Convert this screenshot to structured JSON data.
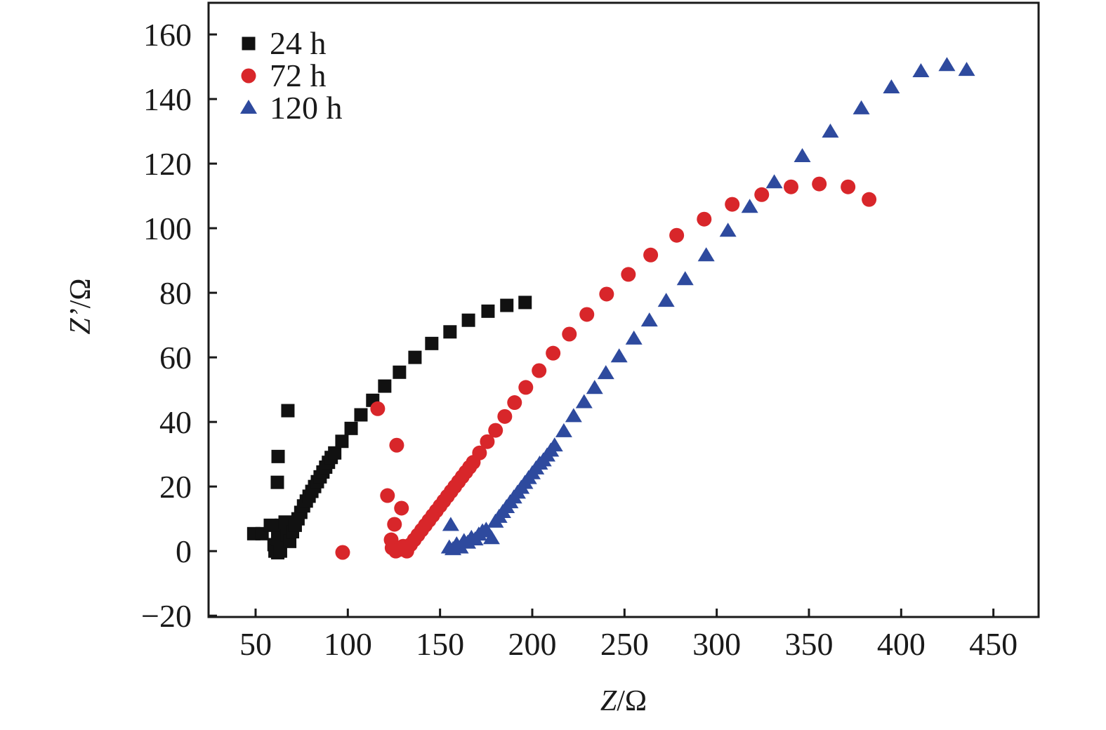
{
  "chart_data": {
    "type": "scatter",
    "title": "",
    "xlabel": "Z/Ω",
    "ylabel": "Z’/Ω",
    "xlim": [
      24.5,
      474.5
    ],
    "ylim": [
      -20.4,
      169.8
    ],
    "xticks": [
      50,
      100,
      150,
      200,
      250,
      300,
      350,
      400,
      450
    ],
    "yticks": [
      -20,
      0,
      20,
      40,
      60,
      80,
      100,
      120,
      140,
      160
    ],
    "xtick_labels": [
      "50",
      "100",
      "150",
      "200",
      "250",
      "300",
      "350",
      "400",
      "450"
    ],
    "ytick_labels": [
      "−20",
      "0",
      "20",
      "40",
      "60",
      "80",
      "100",
      "120",
      "140",
      "160"
    ],
    "grid": false,
    "legend_position": "top-left",
    "series": [
      {
        "name": "24 h",
        "marker": "square",
        "color": "#111111",
        "x": [
          49.0,
          53.5,
          58.0,
          60.0,
          60.5,
          62.0,
          63.5,
          62.0,
          64.0,
          66.0,
          67.0,
          68.5,
          70.0,
          71.5,
          73.0,
          74.5,
          76.0,
          77.5,
          79.0,
          80.5,
          82.0,
          83.5,
          85.0,
          86.5,
          88.0,
          89.5,
          91.0,
          92.9,
          96.8,
          101.8,
          107.1,
          113.5,
          120.0,
          128.0,
          136.4,
          145.5,
          155.4,
          165.4,
          176.0,
          186.2,
          196.1,
          61.8,
          62.2,
          67.5
        ],
        "y": [
          5.4,
          5.4,
          8.0,
          2.0,
          0.0,
          -0.5,
          0.0,
          4.0,
          8.0,
          9.0,
          5.0,
          3.0,
          6.0,
          8.0,
          10.0,
          12.0,
          14.0,
          15.5,
          17.0,
          18.5,
          20.0,
          21.5,
          23.0,
          24.5,
          26.0,
          27.5,
          29.0,
          30.4,
          34.0,
          38.0,
          42.2,
          46.7,
          51.1,
          55.4,
          60.0,
          64.3,
          67.9,
          71.5,
          74.3,
          76.1,
          77.0,
          21.3,
          29.3,
          43.5
        ]
      },
      {
        "name": "72 h",
        "marker": "circle",
        "color": "#D8262A",
        "x": [
          97.2,
          116.2,
          126.5,
          121.5,
          129.1,
          125.3,
          123.5,
          124.0,
          126.0,
          128.0,
          130.0,
          132.0,
          134.0,
          136.0,
          138.0,
          140.0,
          142.0,
          144.0,
          146.0,
          148.0,
          150.0,
          152.0,
          154.0,
          156.0,
          158.0,
          160.0,
          162.0,
          164.0,
          166.0,
          168.0,
          171.4,
          175.6,
          180.1,
          185.1,
          190.4,
          196.5,
          203.7,
          211.3,
          220.1,
          229.6,
          240.3,
          252.1,
          264.2,
          278.3,
          293.2,
          308.4,
          324.4,
          340.3,
          355.6,
          371.2,
          382.6
        ],
        "y": [
          -0.4,
          44.1,
          32.8,
          17.2,
          13.3,
          8.3,
          3.5,
          1.0,
          0.0,
          0.5,
          1.5,
          0.0,
          2.0,
          3.5,
          5.0,
          6.5,
          8.0,
          9.5,
          11.0,
          12.5,
          14.0,
          15.5,
          17.0,
          18.5,
          20.0,
          21.5,
          23.0,
          24.5,
          26.0,
          27.5,
          30.4,
          33.9,
          37.4,
          41.7,
          46.0,
          50.7,
          55.9,
          61.3,
          67.2,
          73.3,
          79.6,
          85.7,
          91.7,
          97.8,
          102.8,
          107.4,
          110.4,
          112.8,
          113.7,
          112.8,
          108.9
        ]
      },
      {
        "name": "120 h",
        "marker": "triangle",
        "color": "#2E4A9E",
        "x": [
          155.8,
          155.0,
          157.0,
          159.0,
          161.0,
          163.0,
          165.0,
          167.0,
          169.0,
          171.0,
          173.0,
          175.0,
          177.9,
          180.0,
          182.0,
          184.0,
          186.0,
          188.0,
          190.0,
          192.0,
          194.0,
          196.0,
          198.0,
          200.0,
          202.0,
          204.0,
          206.0,
          208.0,
          210.0,
          212.1,
          217.1,
          222.4,
          228.1,
          233.8,
          239.9,
          247.1,
          255.1,
          263.5,
          272.6,
          282.9,
          294.3,
          306.1,
          317.9,
          331.2,
          346.4,
          361.6,
          378.4,
          394.7,
          410.7,
          424.8,
          435.5
        ],
        "y": [
          8.0,
          1.0,
          0.5,
          2.0,
          1.0,
          3.0,
          2.5,
          4.0,
          3.5,
          5.0,
          6.0,
          6.5,
          3.9,
          9.0,
          10.5,
          12.0,
          13.5,
          15.0,
          16.5,
          18.0,
          19.5,
          21.0,
          22.5,
          24.0,
          25.5,
          27.0,
          28.0,
          29.5,
          31.0,
          32.6,
          37.0,
          41.7,
          46.0,
          50.4,
          55.0,
          60.2,
          65.7,
          71.3,
          77.4,
          84.1,
          91.5,
          99.1,
          106.5,
          114.1,
          122.2,
          129.8,
          137.0,
          143.5,
          148.5,
          150.4,
          148.9
        ]
      }
    ]
  }
}
